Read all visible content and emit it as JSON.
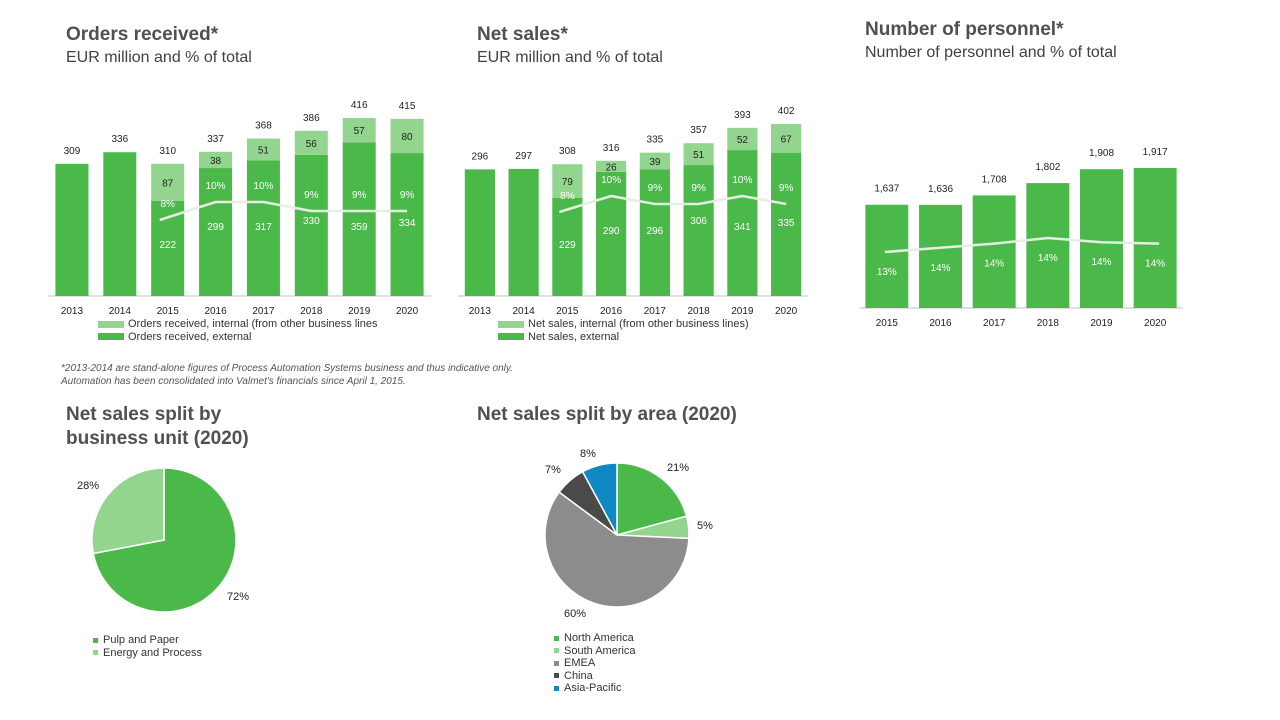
{
  "colors": {
    "dark_green": "#4bb84a",
    "light_green": "#93d58e",
    "line": "#e4efe2",
    "grey": "#8c8c8c",
    "dark_grey": "#4a4a4a",
    "blue": "#0f89c3"
  },
  "chart_data": [
    {
      "id": "orders",
      "type": "bar",
      "title": "Orders received*",
      "subtitle": "EUR million and % of total",
      "categories": [
        "2013",
        "2014",
        "2015",
        "2016",
        "2017",
        "2018",
        "2019",
        "2020"
      ],
      "totals": [
        309,
        336,
        310,
        337,
        368,
        386,
        416,
        415
      ],
      "series": [
        {
          "name": "Orders received, external",
          "values": [
            309,
            336,
            222,
            299,
            317,
            330,
            359,
            334
          ],
          "label_values": [
            null,
            null,
            222,
            299,
            317,
            330,
            359,
            334
          ]
        },
        {
          "name": "Orders received, internal (from other business lines",
          "values": [
            0,
            0,
            87,
            38,
            51,
            56,
            57,
            80
          ]
        }
      ],
      "percent_labels": [
        "",
        "",
        "8%",
        "10%",
        "10%",
        "9%",
        "9%",
        "9%"
      ],
      "percent_values": [
        null,
        null,
        8,
        10,
        10,
        9,
        9,
        9
      ],
      "legend": [
        "Orders received, internal (from other business lines",
        "Orders received, external"
      ],
      "stacked": true
    },
    {
      "id": "netsales",
      "type": "bar",
      "title": "Net sales*",
      "subtitle": "EUR million and % of total",
      "categories": [
        "2013",
        "2014",
        "2015",
        "2016",
        "2017",
        "2018",
        "2019",
        "2020"
      ],
      "totals": [
        296,
        297,
        308,
        316,
        335,
        357,
        393,
        402
      ],
      "series": [
        {
          "name": "Net sales, external",
          "values": [
            296,
            297,
            229,
            290,
            296,
            306,
            341,
            335
          ],
          "label_values": [
            null,
            null,
            229,
            290,
            296,
            306,
            341,
            335
          ]
        },
        {
          "name": "Net sales, internal (from other business lines",
          "values": [
            0,
            0,
            79,
            26,
            39,
            51,
            52,
            67
          ]
        }
      ],
      "percent_labels": [
        "",
        "",
        "8%",
        "10%",
        "9%",
        "9%",
        "10%",
        "9%"
      ],
      "percent_values": [
        null,
        null,
        8,
        10,
        9,
        9,
        10,
        9
      ],
      "legend": [
        "Net sales, internal (from other business lines)",
        "Net sales, external"
      ],
      "stacked": true
    },
    {
      "id": "personnel",
      "type": "bar",
      "title": "Number of personnel*",
      "subtitle": "Number of personnel and % of total",
      "categories": [
        "2015",
        "2016",
        "2017",
        "2018",
        "2019",
        "2020"
      ],
      "totals": [
        "1,637",
        "1,636",
        "1,708",
        "1,802",
        "1,908",
        "1,917"
      ],
      "series": [
        {
          "name": "Number of personnel",
          "values": [
            1637,
            1636,
            1708,
            1802,
            1908,
            1917
          ]
        }
      ],
      "percent_labels": [
        "13%",
        "14%",
        "14%",
        "14%",
        "14%",
        "14%"
      ],
      "percent_values": [
        13.4,
        13.7,
        14.0,
        14.4,
        14.1,
        14.0
      ]
    },
    {
      "id": "bu_split",
      "type": "pie",
      "title": "Net sales split by business unit (2020)",
      "title_lines": [
        "Net sales split by",
        "business unit (2020)"
      ],
      "slices": [
        {
          "name": "Pulp and Paper",
          "value": 72,
          "label": "72%"
        },
        {
          "name": "Energy and Process",
          "value": 28,
          "label": "28%"
        }
      ]
    },
    {
      "id": "area_split",
      "type": "pie",
      "title": "Net sales split by area (2020)",
      "slices": [
        {
          "name": "North America",
          "value": 21,
          "label": "21%"
        },
        {
          "name": "South America",
          "value": 5,
          "label": "5%"
        },
        {
          "name": "EMEA",
          "value": 60,
          "label": "60%"
        },
        {
          "name": "China",
          "value": 7,
          "label": "7%"
        },
        {
          "name": "Asia-Pacific",
          "value": 8,
          "label": "8%"
        }
      ]
    }
  ],
  "footnote": "*2013-2014 are stand-alone figures of Process Automation Systems business and thus indicative only. Automation has been consolidated into Valmet's financials since April 1, 2015."
}
